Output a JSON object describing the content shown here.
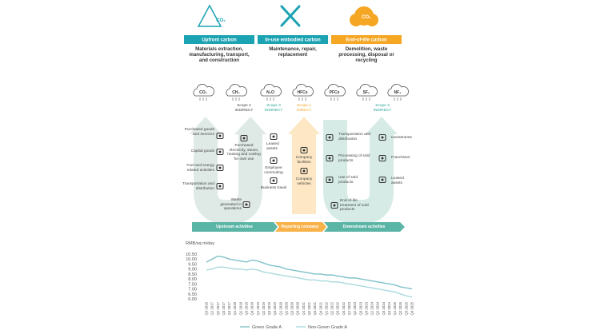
{
  "infographic": {
    "stages": [
      {
        "icon_text": "CO₂",
        "title": "Upfront carbon",
        "description": "Materials extraction, manufacturing, transport, and construction"
      },
      {
        "title": "In-use embodied carbon",
        "description": "Maintenance, repair, replacement"
      },
      {
        "icon_text": "CO₂",
        "title": "End-of-life carbon",
        "description": "Demolition, waste processing, disposal or recycling"
      }
    ],
    "gases": [
      "CO₂",
      "CH₄",
      "N₂O",
      "HFCs",
      "PFCs",
      "SF₆",
      "NF₃"
    ],
    "scopes": [
      {
        "label": "Scope 2",
        "type": "INDIRECT"
      },
      {
        "label": "Scope 3",
        "type": "INDIRECT"
      },
      {
        "label": "Scope 1",
        "type": "DIRECT"
      },
      {
        "label": "Scope 3",
        "type": "INDIRECT"
      }
    ],
    "activities": [
      "Purchased goods and services",
      "Capital goods",
      "Fuel and energy related activities",
      "Transportation and distribution",
      "Purchased electricity, steam, heating and cooling for own use",
      "Waste generated in operations",
      "Leased assets",
      "Employee commuting",
      "Business travel",
      "Company facilities",
      "Company vehicles",
      "Transportation and distribution",
      "Processing of sold products",
      "Use of sold products",
      "End-of-life treatment of sold products",
      "Investments",
      "Franchises",
      "Leased assets"
    ],
    "flow": [
      "Upstream activities",
      "Reporting company",
      "Downstream activities"
    ]
  },
  "chart_data": {
    "type": "line",
    "y_label": "RMB/sq m/day",
    "categories": [
      "Q4 2016",
      "Q1 2017",
      "Q2 2017",
      "Q3 2017",
      "Q4 2017",
      "Q1 2018",
      "Q2 2018",
      "Q3 2018",
      "Q4 2018",
      "Q1 2019",
      "Q2 2019",
      "Q3 2019",
      "Q4 2019",
      "Q1 2020",
      "Q2 2020",
      "Q3 2020",
      "Q4 2020",
      "Q1 2021",
      "Q2 2021",
      "Q3 2021",
      "Q4 2021",
      "Q1 2022",
      "Q2 2022",
      "Q3 2022",
      "Q4 2022",
      "Q1 2023",
      "Q2 2023",
      "Q3 2023",
      "Q4 2023",
      "Q1 2024",
      "Q2 2024",
      "Q3 2024",
      "Q4 2024",
      "Q1 2025",
      "Q2 2025",
      "Q3 2025",
      "Q4 2025"
    ],
    "series": [
      {
        "name": "Green Grade A",
        "color": "#7fc1c8",
        "values": [
          9.7,
          10.0,
          10.3,
          10.2,
          10.0,
          9.9,
          9.8,
          9.7,
          9.9,
          9.8,
          9.6,
          9.4,
          9.3,
          9.2,
          9.0,
          8.9,
          8.8,
          8.7,
          8.6,
          8.5,
          8.5,
          8.4,
          8.4,
          8.3,
          8.2,
          8.1,
          8.1,
          8.0,
          7.9,
          7.8,
          7.7,
          7.6,
          7.5,
          7.4,
          7.2,
          7.1,
          7.0
        ]
      },
      {
        "name": "Non-Green Grade A",
        "color": "#a9dade",
        "values": [
          8.9,
          9.0,
          9.2,
          9.2,
          9.1,
          9.0,
          9.0,
          8.9,
          9.0,
          8.9,
          8.7,
          8.6,
          8.5,
          8.4,
          8.3,
          8.2,
          8.1,
          8.0,
          7.9,
          7.9,
          7.8,
          7.8,
          7.7,
          7.7,
          7.6,
          7.5,
          7.4,
          7.3,
          7.2,
          7.1,
          7.0,
          6.9,
          6.8,
          6.7,
          6.5,
          6.3,
          6.2
        ]
      }
    ],
    "ylim": [
      6.0,
      10.5
    ],
    "yticks": [
      {
        "value": 10.5,
        "label": "10.50"
      },
      {
        "value": 10.0,
        "label": "10.00"
      },
      {
        "value": 9.5,
        "label": "9.50"
      },
      {
        "value": 9.0,
        "label": "9.00"
      },
      {
        "value": 8.5,
        "label": "8.50"
      },
      {
        "value": 8.0,
        "label": "8.00"
      },
      {
        "value": 7.5,
        "label": "7.50"
      },
      {
        "value": 7.0,
        "label": "7.00"
      },
      {
        "value": 6.5,
        "label": "6.50"
      },
      {
        "value": 6.0,
        "label": "6.00"
      }
    ]
  }
}
